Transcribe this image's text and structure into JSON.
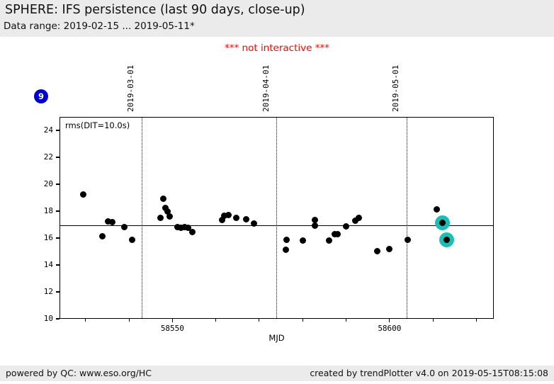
{
  "header": {
    "title": "SPHERE: IFS persistence (last 90 days, close-up)",
    "subtitle": "Data range: 2019-02-15 ... 2019-05-11*",
    "bar_color": "#ebebeb"
  },
  "notice": {
    "text": "*** not interactive ***",
    "color": "#ff0000"
  },
  "badge": {
    "label": "9",
    "color": "#0000cc",
    "text_color": "#ffffff"
  },
  "footer": {
    "powered_prefix": "powered by QC: ",
    "powered_link": "www.eso.org/HC",
    "created": "created by trendPlotter v4.0 on 2019-05-15T08:15:08"
  },
  "chart_data": {
    "type": "scatter",
    "title": "SPHERE: IFS persistence (last 90 days, close-up)",
    "inner_label": "rms(DIT=10.0s)",
    "xlabel": "MJD",
    "ylabel": "",
    "xlim": [
      58524,
      58624
    ],
    "ylim": [
      10,
      25
    ],
    "grid": false,
    "y_ticks": [
      10,
      12,
      14,
      16,
      18,
      20,
      22,
      24
    ],
    "x_major_ticks": [
      {
        "mjd": 58550,
        "label": "58550"
      },
      {
        "mjd": 58600,
        "label": "58600"
      }
    ],
    "x_minor_ticks": [
      58530,
      58540,
      58560,
      58570,
      58580,
      58590,
      58610,
      58620
    ],
    "date_lines": [
      {
        "mjd": 58543,
        "label": "2019-03-01"
      },
      {
        "mjd": 58574,
        "label": "2019-04-01"
      },
      {
        "mjd": 58604,
        "label": "2019-05-01"
      }
    ],
    "avg_line_y": 16.9,
    "point_color": "#000000",
    "highlight_color": "#1cbeb4",
    "points": [
      [
        58529.5,
        19.2
      ],
      [
        58534.0,
        16.1
      ],
      [
        58535.3,
        17.2
      ],
      [
        58536.3,
        17.15
      ],
      [
        58539.0,
        16.8
      ],
      [
        58540.8,
        15.85
      ],
      [
        58547.4,
        17.5
      ],
      [
        58548.0,
        18.9
      ],
      [
        58548.4,
        18.2
      ],
      [
        58549.0,
        17.95
      ],
      [
        58549.4,
        17.6
      ],
      [
        58551.3,
        16.8
      ],
      [
        58552.1,
        16.75
      ],
      [
        58552.9,
        16.8
      ],
      [
        58553.7,
        16.75
      ],
      [
        58554.7,
        16.4
      ],
      [
        58561.5,
        17.3
      ],
      [
        58562.0,
        17.65
      ],
      [
        58563.0,
        17.7
      ],
      [
        58564.8,
        17.5
      ],
      [
        58567.0,
        17.35
      ],
      [
        58568.8,
        17.05
      ],
      [
        58576.2,
        15.1
      ],
      [
        58576.4,
        15.85
      ],
      [
        58580.1,
        15.8
      ],
      [
        58582.9,
        17.3
      ],
      [
        58582.9,
        16.9
      ],
      [
        58586.2,
        15.8
      ],
      [
        58587.5,
        16.25
      ],
      [
        58588.1,
        16.25
      ],
      [
        58590.1,
        16.85
      ],
      [
        58592.2,
        17.25
      ],
      [
        58593.0,
        17.5
      ],
      [
        58597.2,
        15.0
      ],
      [
        58600.0,
        15.15
      ],
      [
        58604.2,
        15.85
      ],
      [
        58611.0,
        18.1
      ]
    ],
    "highlighted_points": [
      [
        58612.2,
        17.1
      ],
      [
        58613.2,
        15.85
      ]
    ]
  }
}
